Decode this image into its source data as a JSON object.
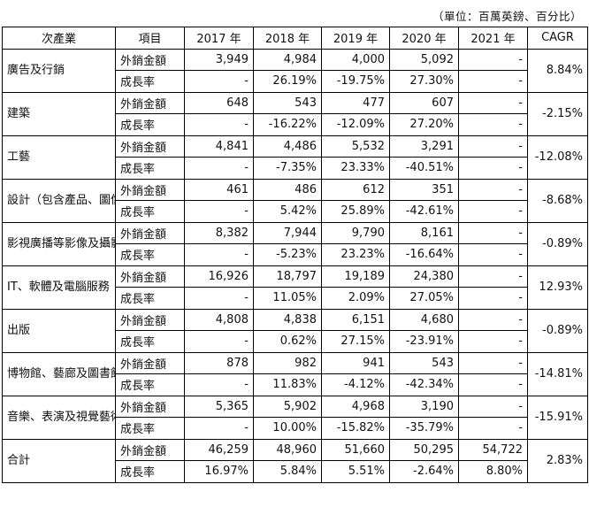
{
  "unit_note": "（單位：百萬英鎊、百分比）",
  "headers": [
    "次產業",
    "項目",
    "2017 年",
    "2018 年",
    "2019 年",
    "2020 年",
    "2021 年",
    "CAGR"
  ],
  "rows": [
    {
      "category": "廣告及行銷",
      "export_label": "外銷金額",
      "exports": [
        "3,949",
        "4,984",
        "4,000",
        "5,092",
        "-"
      ],
      "growth_label": "成長率",
      "growth": [
        "-",
        "26.19%",
        "-19.75%",
        "27.30%",
        "-"
      ],
      "cagr": "8.84%"
    },
    {
      "category": "建築",
      "export_label": "外銷金額",
      "exports": [
        "648",
        "543",
        "477",
        "607",
        "-"
      ],
      "growth_label": "成長率",
      "growth": [
        "-",
        "-16.22%",
        "-12.09%",
        "27.20%",
        "-"
      ],
      "cagr": "-2.15%"
    },
    {
      "category": "工藝",
      "export_label": "外銷金額",
      "exports": [
        "4,841",
        "4,486",
        "5,532",
        "3,291",
        "-"
      ],
      "growth_label": "成長率",
      "growth": [
        "-",
        "-7.35%",
        "23.33%",
        "-40.51%",
        "-"
      ],
      "cagr": "-12.08%"
    },
    {
      "category": "設計（包含產品、圖像及流行時尚）",
      "export_label": "外銷金額",
      "exports": [
        "461",
        "486",
        "612",
        "351",
        "-"
      ],
      "growth_label": "成長率",
      "growth": [
        "-",
        "5.42%",
        "25.89%",
        "-42.61%",
        "-"
      ],
      "cagr": "-8.68%"
    },
    {
      "category": "影視廣播等影像及攝影相關",
      "export_label": "外銷金額",
      "exports": [
        "8,382",
        "7,944",
        "9,790",
        "8,161",
        "-"
      ],
      "growth_label": "成長率",
      "growth": [
        "-",
        "-5.23%",
        "23.23%",
        "-16.64%",
        "-"
      ],
      "cagr": "-0.89%"
    },
    {
      "category": "IT、軟體及電腦服務",
      "export_label": "外銷金額",
      "exports": [
        "16,926",
        "18,797",
        "19,189",
        "24,380",
        "-"
      ],
      "growth_label": "成長率",
      "growth": [
        "-",
        "11.05%",
        "2.09%",
        "27.05%",
        "-"
      ],
      "cagr": "12.93%"
    },
    {
      "category": "出版",
      "export_label": "外銷金額",
      "exports": [
        "4,808",
        "4,838",
        "6,151",
        "4,680",
        "-"
      ],
      "growth_label": "成長率",
      "growth": [
        "-",
        "0.62%",
        "27.15%",
        "-23.91%",
        "-"
      ],
      "cagr": "-0.89%"
    },
    {
      "category": "博物館、藝廊及圖書館",
      "export_label": "外銷金額",
      "exports": [
        "878",
        "982",
        "941",
        "543",
        "-"
      ],
      "growth_label": "成長率",
      "growth": [
        "-",
        "11.83%",
        "-4.12%",
        "-42.34%",
        "-"
      ],
      "cagr": "-14.81%"
    },
    {
      "category": "音樂、表演及視覺藝術",
      "export_label": "外銷金額",
      "exports": [
        "5,365",
        "5,902",
        "4,968",
        "3,190",
        "-"
      ],
      "growth_label": "成長率",
      "growth": [
        "-",
        "10.00%",
        "-15.82%",
        "-35.79%",
        "-"
      ],
      "cagr": "-15.91%"
    },
    {
      "category": "合計",
      "export_label": "外銷金額",
      "exports": [
        "46,259",
        "48,960",
        "51,660",
        "50,295",
        "54,722"
      ],
      "growth_label": "成長率",
      "growth": [
        "16.97%",
        "5.84%",
        "5.51%",
        "-2.64%",
        "8.80%"
      ],
      "cagr": "2.83%"
    }
  ]
}
